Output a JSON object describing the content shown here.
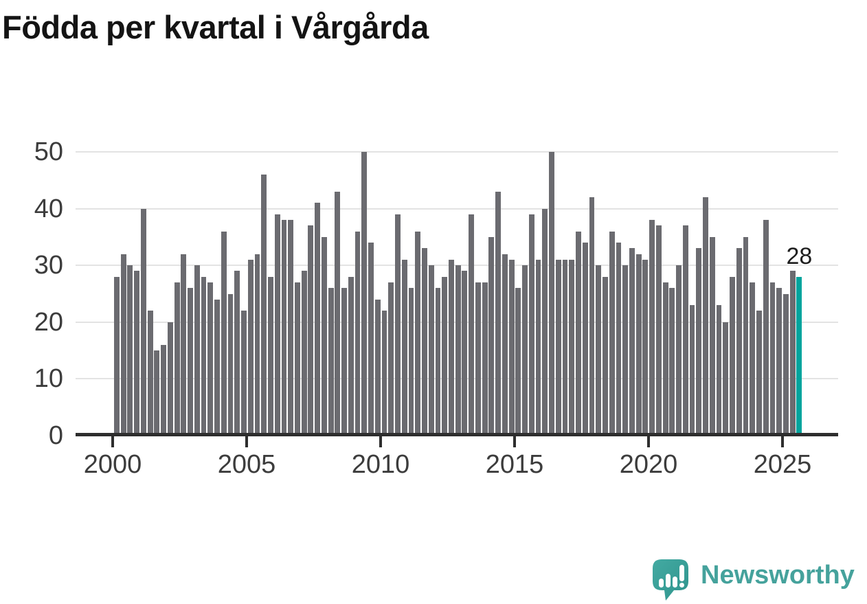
{
  "title": "Födda per kvartal i Vårgårda",
  "chart_data": {
    "type": "bar",
    "title": "Födda per kvartal i Vårgårda",
    "x_start_quarter": "2000 Q1",
    "x_end_quarter": "2025 Q3",
    "values": [
      28,
      32,
      30,
      29,
      40,
      22,
      15,
      16,
      20,
      27,
      32,
      26,
      30,
      28,
      27,
      24,
      36,
      25,
      29,
      22,
      31,
      32,
      46,
      28,
      39,
      38,
      38,
      27,
      29,
      37,
      41,
      35,
      26,
      43,
      26,
      28,
      36,
      50,
      34,
      24,
      22,
      27,
      39,
      31,
      26,
      36,
      33,
      30,
      26,
      28,
      31,
      30,
      29,
      39,
      27,
      27,
      35,
      43,
      32,
      31,
      26,
      30,
      39,
      31,
      40,
      50,
      31,
      31,
      31,
      36,
      34,
      42,
      30,
      28,
      36,
      34,
      30,
      33,
      32,
      31,
      38,
      37,
      27,
      26,
      30,
      37,
      23,
      33,
      42,
      35,
      23,
      20,
      28,
      33,
      35,
      27,
      22,
      38,
      27,
      26,
      25,
      29,
      28
    ],
    "highlight": {
      "index": 102,
      "label": "28",
      "color": "#00a49d"
    },
    "x_tick_labels": [
      "2000",
      "2005",
      "2010",
      "2015",
      "2020",
      "2025"
    ],
    "y_ticks": [
      0,
      10,
      20,
      30,
      40,
      50
    ],
    "ylim": [
      0,
      52
    ],
    "grid": true,
    "legend_position": "none"
  },
  "annotation": {
    "value_label": "28"
  },
  "logo": {
    "wordmark": "Newsworthy"
  },
  "colors": {
    "bar": "#6b6b70",
    "highlight": "#00a49d",
    "grid": "#e3e3e3",
    "axis": "#2e2e2e",
    "tick_text": "#3c3c3c",
    "title_text": "#141414",
    "logo_teal": "#3da29b",
    "logo_teal_dark": "#2f948d",
    "logo_text": "#45a29c"
  }
}
